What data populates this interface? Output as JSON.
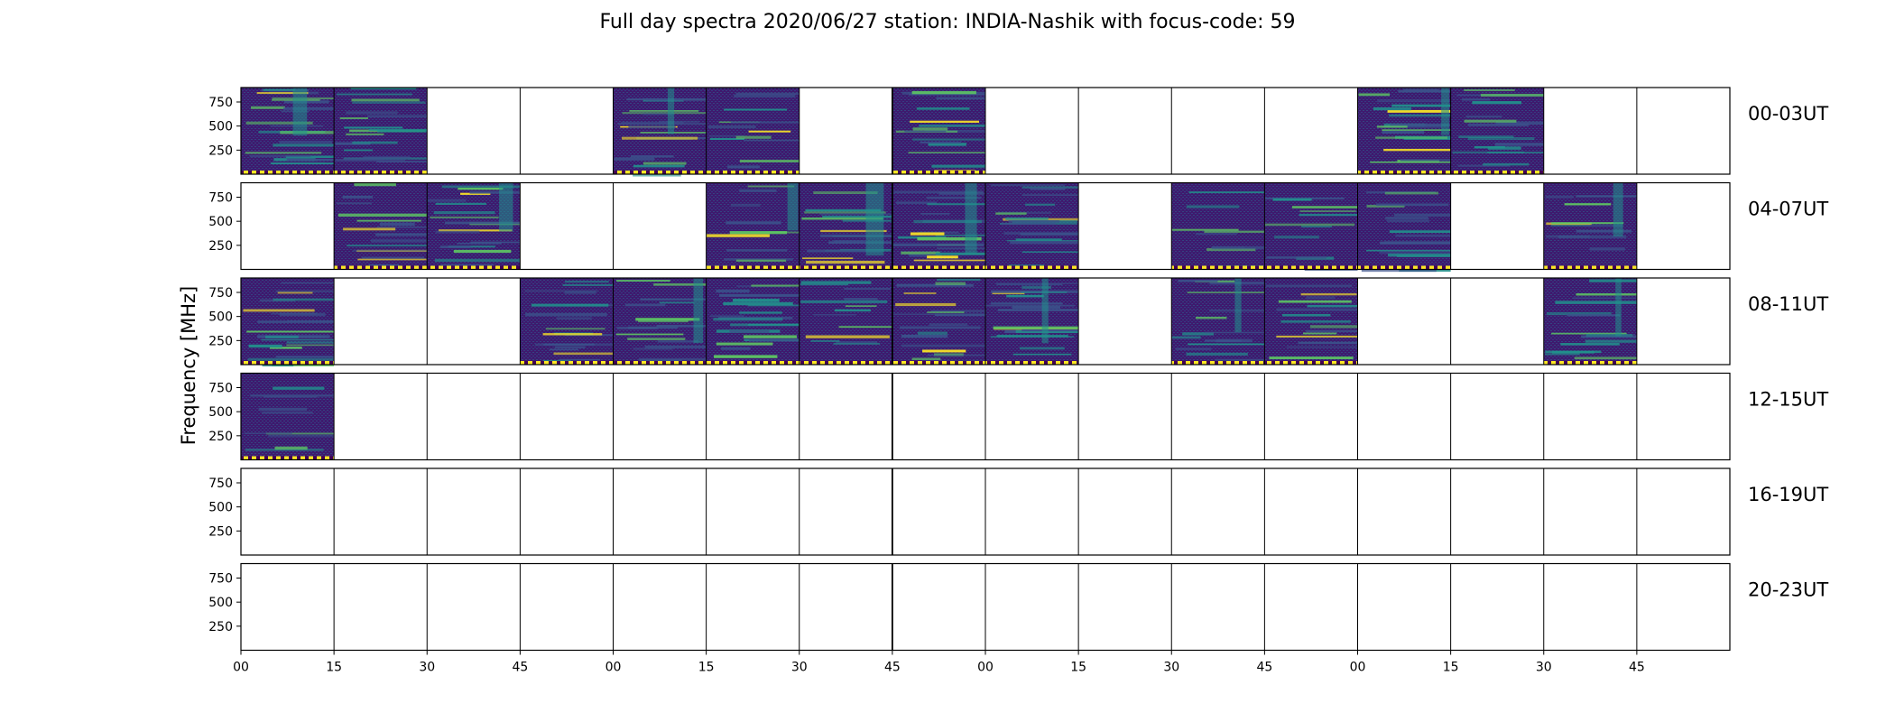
{
  "chart_data": {
    "type": "heatmap",
    "title": "Full day spectra 2020/06/27 station: INDIA-Nashik with focus-code: 59",
    "ylabel": "Frequency [MHz]",
    "yticks": [
      "750",
      "500",
      "250"
    ],
    "yrange": [
      0,
      900
    ],
    "xticks": [
      "00",
      "15",
      "30",
      "45",
      "00",
      "15",
      "30",
      "45",
      "00",
      "15",
      "30",
      "45",
      "00",
      "15",
      "30",
      "45"
    ],
    "colormap": [
      "#440154",
      "#3b528b",
      "#21918c",
      "#5ec962",
      "#fde725"
    ],
    "rows": [
      {
        "label": "00-03UT",
        "panels": [
          1,
          1,
          0,
          0,
          1,
          1,
          0,
          1,
          0,
          0,
          0,
          0,
          1,
          1,
          0,
          0
        ]
      },
      {
        "label": "04-07UT",
        "panels": [
          0,
          1,
          1,
          0,
          0,
          1,
          1,
          1,
          1,
          0,
          1,
          1,
          1,
          0,
          1,
          0
        ]
      },
      {
        "label": "08-11UT",
        "panels": [
          1,
          0,
          0,
          1,
          1,
          1,
          1,
          1,
          1,
          0,
          1,
          1,
          0,
          0,
          1,
          0
        ]
      },
      {
        "label": "12-15UT",
        "panels": [
          1,
          0,
          0,
          0,
          0,
          0,
          0,
          0,
          0,
          0,
          0,
          0,
          0,
          0,
          0,
          0
        ]
      },
      {
        "label": "16-19UT",
        "panels": [
          0,
          0,
          0,
          0,
          0,
          0,
          0,
          0,
          0,
          0,
          0,
          0,
          0,
          0,
          0,
          0
        ]
      },
      {
        "label": "20-23UT",
        "panels": [
          0,
          0,
          0,
          0,
          0,
          0,
          0,
          0,
          0,
          0,
          0,
          0,
          0,
          0,
          0,
          0
        ]
      }
    ]
  }
}
